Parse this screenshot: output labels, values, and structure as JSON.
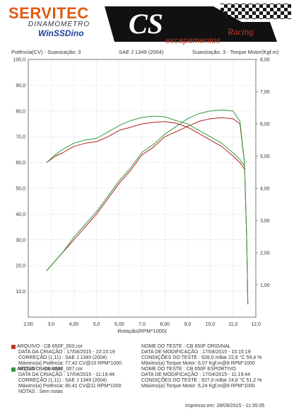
{
  "brand": {
    "name": "SERVITEC",
    "subtitle": "DINAMOMETRO",
    "software": "WinSSDino",
    "logo_text": "CS",
    "logo_tag": "escapamentos",
    "logo_script": "Racing"
  },
  "header": {
    "left": "Potência(CV) - Suavização: 3",
    "center": "SAE J 1349 (2004)",
    "right": "Suavização: 3 - Torque Motor(Kgf.m)"
  },
  "chart_data": {
    "type": "line",
    "xlabel": "Rotação(RPM*1000)",
    "ylabel": "Potência(CV)",
    "y2label": "Torque Motor(Kgf.m)",
    "xlim": [
      2.0,
      12.0
    ],
    "ylim": [
      0,
      100
    ],
    "y2lim": [
      0,
      8
    ],
    "x_ticks": [
      "2,00",
      "3,0",
      "4,00",
      "5,0",
      "6,00",
      "7,0",
      "8,00",
      "9,0",
      "10,0",
      "11,0",
      "12,0"
    ],
    "y_ticks": [
      "10,0",
      "20,0",
      "30,0",
      "40,0",
      "50,0",
      "60,0",
      "70,0",
      "80,0",
      "90,0",
      "100,0"
    ],
    "y2_ticks": [
      "1,00",
      "2,00",
      "3,00",
      "4,00",
      "5,00",
      "6,00",
      "7,00",
      "8,00"
    ],
    "grid": true,
    "series": [
      {
        "name": "CB 650F ORIGINAL - Potência",
        "color": "#b02020",
        "axis": "left",
        "x": [
          2.8,
          3.5,
          4.0,
          4.5,
          5.0,
          5.5,
          6.0,
          6.5,
          7.0,
          7.5,
          8.0,
          8.5,
          9.0,
          9.5,
          10.0,
          10.5,
          11.0,
          11.3,
          11.5,
          11.6,
          11.65
        ],
        "y": [
          18,
          25,
          30,
          35,
          40,
          46,
          52,
          57,
          63,
          66,
          70,
          72,
          74,
          76,
          77,
          77.4,
          77,
          75,
          60,
          30,
          5
        ]
      },
      {
        "name": "CB 650F ESPORTIVO - Potência",
        "color": "#2e9a3a",
        "axis": "left",
        "x": [
          2.8,
          3.5,
          4.0,
          4.5,
          5.0,
          5.5,
          6.0,
          6.5,
          7.0,
          7.5,
          8.0,
          8.5,
          9.0,
          9.5,
          10.0,
          10.5,
          11.0,
          11.3,
          11.5,
          11.6,
          11.65
        ],
        "y": [
          18,
          25,
          31,
          36,
          41,
          47,
          53,
          58,
          64,
          67,
          71,
          74,
          77,
          79,
          80,
          80.4,
          80,
          76,
          60,
          30,
          5
        ]
      },
      {
        "name": "CB 650F ORIGINAL - Torque",
        "color": "#b02020",
        "axis": "right",
        "x": [
          2.8,
          3.2,
          3.5,
          4.0,
          4.5,
          5.0,
          5.5,
          6.0,
          6.5,
          7.0,
          7.5,
          8.0,
          8.5,
          9.0,
          9.5,
          10.0,
          10.5,
          11.0,
          11.3,
          11.5
        ],
        "y": [
          4.8,
          5.0,
          5.1,
          5.3,
          5.4,
          5.45,
          5.6,
          5.8,
          5.9,
          6.0,
          6.05,
          6.07,
          6.02,
          5.9,
          5.7,
          5.5,
          5.3,
          5.0,
          4.8,
          4.6
        ]
      },
      {
        "name": "CB 650F ESPORTIVO - Torque",
        "color": "#2e9a3a",
        "axis": "right",
        "x": [
          2.8,
          3.2,
          3.5,
          4.0,
          4.5,
          5.0,
          5.5,
          6.0,
          6.5,
          7.0,
          7.5,
          8.0,
          8.5,
          9.0,
          9.5,
          10.0,
          10.5,
          11.0,
          11.3,
          11.5
        ],
        "y": [
          4.8,
          5.05,
          5.2,
          5.4,
          5.5,
          5.55,
          5.75,
          5.95,
          6.1,
          6.2,
          6.24,
          6.22,
          6.1,
          6.0,
          5.8,
          5.6,
          5.4,
          5.1,
          4.9,
          4.7
        ]
      }
    ]
  },
  "runs": [
    {
      "color": "#c0392b",
      "arquivo": "ARQUIVO      :  CB 650F_003.cor",
      "data_criacao": "DATA DA CRIAÇÃO   :  17/04/2015 - 10:15:19",
      "correcao": "CORREÇÃO (1,11)   :  SAE J 1349 (2004)",
      "max_potencia": "Máximo(a) Potência:  77,42 CV@10 RPM*1000",
      "notas": "NOTAS  :  Sem notas",
      "nome_teste": "NOME DO TESTE     :  CB 650F ORIGINAL",
      "data_mod": "DATA DE MODIFICAÇÃO :  17/04/2015 - 10:15:19",
      "condicoes": "CONDIÇÕES DO TESTE :  928,0 mBar  22,6 °C  59,4 %",
      "max_torque": "Máximo(a) Torque Motor:  6,07 Kgf.m@8 RPM*1000"
    },
    {
      "color": "#2e9a3a",
      "arquivo": "ARQUIVO      :  CB 650F_007.cor",
      "data_criacao": "DATA DA CRIAÇÃO   :  17/04/2015 - 11:19:44",
      "correcao": "CORREÇÃO (1,11)   :  SAE J 1349 (2004)",
      "max_potencia": "Máximo(a) Potência:  80,41 CV@11 RPM*1000",
      "notas": "NOTAS  :  Sem notas",
      "nome_teste": "NOME DO TESTE     :  CB 650F ESPORTIVO",
      "data_mod": "DATA DE MODIFICAÇÃO :  17/04/2015 - 11:19:44",
      "condicoes": "CONDIÇÕES DO TESTE :  927,0 mBar  24,8 °C  51,2 %",
      "max_torque": "Máximo(a) Torque Motor:  6,24 Kgf.m@8 RPM*1000"
    }
  ],
  "footer": {
    "printed": "Impresso em: 28/09/2015 - 11:35:05"
  }
}
